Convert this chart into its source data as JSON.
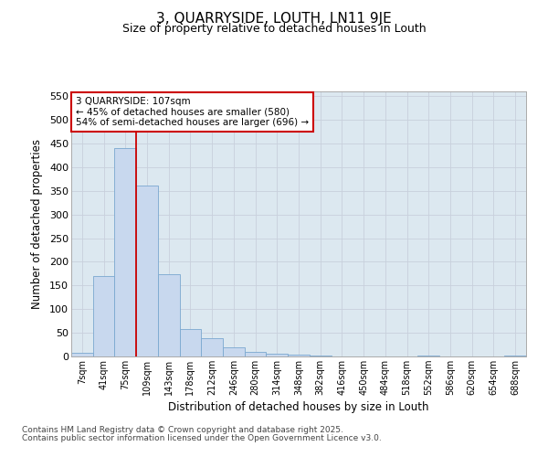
{
  "title1": "3, QUARRYSIDE, LOUTH, LN11 9JE",
  "title2": "Size of property relative to detached houses in Louth",
  "xlabel": "Distribution of detached houses by size in Louth",
  "ylabel": "Number of detached properties",
  "categories": [
    "7sqm",
    "41sqm",
    "75sqm",
    "109sqm",
    "143sqm",
    "178sqm",
    "212sqm",
    "246sqm",
    "280sqm",
    "314sqm",
    "348sqm",
    "382sqm",
    "416sqm",
    "450sqm",
    "484sqm",
    "518sqm",
    "552sqm",
    "586sqm",
    "620sqm",
    "654sqm",
    "688sqm"
  ],
  "values": [
    7,
    169,
    440,
    362,
    174,
    57,
    39,
    20,
    10,
    6,
    4,
    1,
    0,
    0,
    0,
    0,
    1,
    0,
    0,
    0,
    2
  ],
  "bar_color": "#c8d8ee",
  "bar_edge_color": "#7aa8d0",
  "grid_color": "#c8d0dc",
  "background_color": "#ffffff",
  "plot_bg_color": "#dce8f0",
  "annotation_text": "3 QUARRYSIDE: 107sqm\n← 45% of detached houses are smaller (580)\n54% of semi-detached houses are larger (696) →",
  "annotation_box_color": "#cc0000",
  "vline_x_index": 2.5,
  "ylim": [
    0,
    560
  ],
  "yticks": [
    0,
    50,
    100,
    150,
    200,
    250,
    300,
    350,
    400,
    450,
    500,
    550
  ],
  "footer1": "Contains HM Land Registry data © Crown copyright and database right 2025.",
  "footer2": "Contains public sector information licensed under the Open Government Licence v3.0."
}
